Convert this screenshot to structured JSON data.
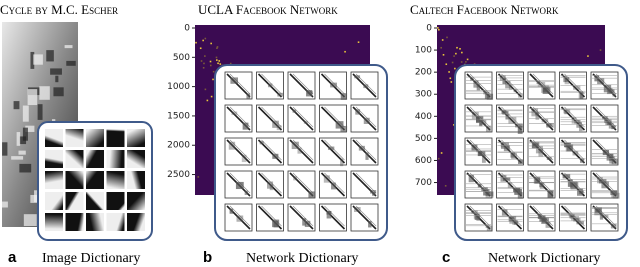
{
  "panels": [
    {
      "title": "Cycle by M.C. Escher",
      "label": "a",
      "caption": "Image Dictionary"
    },
    {
      "title": "UCLA Facebook Network",
      "label": "b",
      "caption": "Network Dictionary",
      "yticks": [
        "0",
        "500",
        "1000",
        "1500",
        "2000",
        "2500"
      ]
    },
    {
      "title": "Caltech Facebook Network",
      "label": "c",
      "caption": "Network Dictionary",
      "yticks": [
        "0",
        "100",
        "200",
        "300",
        "400",
        "500",
        "600",
        "700"
      ]
    }
  ]
}
